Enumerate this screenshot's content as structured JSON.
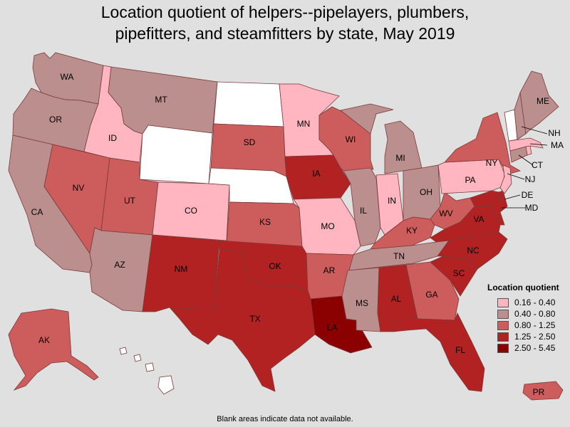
{
  "title": {
    "line1": "Location quotient of helpers--pipelayers, plumbers,",
    "line2": "pipefitters, and steamfitters by state, May 2019"
  },
  "legend": {
    "title": "Location quotient",
    "items": [
      {
        "label": "0.16 - 0.40",
        "color": "#ffb6c1"
      },
      {
        "label": "0.40 - 0.80",
        "color": "#bc8f8f"
      },
      {
        "label": "0.80 - 1.25",
        "color": "#cd5c5c"
      },
      {
        "label": "1.25 - 2.50",
        "color": "#b22222"
      },
      {
        "label": "2.50 - 5.45",
        "color": "#8b0000"
      }
    ]
  },
  "no_data_color": "#ffffff",
  "footnote": "Blank areas indicate data not available.",
  "states": {
    "WA": {
      "label": "WA",
      "class": 1
    },
    "OR": {
      "label": "OR",
      "class": 1
    },
    "CA": {
      "label": "CA",
      "class": 1
    },
    "ID": {
      "label": "ID",
      "class": 0
    },
    "NV": {
      "label": "NV",
      "class": 2
    },
    "MT": {
      "label": "MT",
      "class": 1
    },
    "WY": {
      "label": "",
      "class": -1
    },
    "UT": {
      "label": "UT",
      "class": 2
    },
    "AZ": {
      "label": "AZ",
      "class": 1
    },
    "CO": {
      "label": "CO",
      "class": 0
    },
    "NM": {
      "label": "NM",
      "class": 3
    },
    "ND": {
      "label": "",
      "class": -1
    },
    "SD": {
      "label": "SD",
      "class": 2
    },
    "NE": {
      "label": "",
      "class": -1
    },
    "KS": {
      "label": "KS",
      "class": 2
    },
    "OK": {
      "label": "OK",
      "class": 3
    },
    "TX": {
      "label": "TX",
      "class": 3
    },
    "MN": {
      "label": "MN",
      "class": 0
    },
    "IA": {
      "label": "IA",
      "class": 3
    },
    "MO": {
      "label": "MO",
      "class": 0
    },
    "AR": {
      "label": "AR",
      "class": 2
    },
    "LA": {
      "label": "LA",
      "class": 4
    },
    "WI": {
      "label": "WI",
      "class": 2
    },
    "IL": {
      "label": "IL",
      "class": 1
    },
    "MI": {
      "label": "MI",
      "class": 1
    },
    "IN": {
      "label": "IN",
      "class": 0
    },
    "OH": {
      "label": "OH",
      "class": 1
    },
    "KY": {
      "label": "KY",
      "class": 2
    },
    "TN": {
      "label": "TN",
      "class": 1
    },
    "MS": {
      "label": "MS",
      "class": 1
    },
    "AL": {
      "label": "AL",
      "class": 3
    },
    "GA": {
      "label": "GA",
      "class": 2
    },
    "FL": {
      "label": "FL",
      "class": 3
    },
    "SC": {
      "label": "SC",
      "class": 3
    },
    "NC": {
      "label": "NC",
      "class": 3
    },
    "VA": {
      "label": "VA",
      "class": 3
    },
    "WV": {
      "label": "WV",
      "class": 2
    },
    "PA": {
      "label": "PA",
      "class": 0
    },
    "NY": {
      "label": "NY",
      "class": 2
    },
    "VT": {
      "label": "",
      "class": -1
    },
    "NH": {
      "label": "NH",
      "class": 1
    },
    "ME": {
      "label": "ME",
      "class": 1
    },
    "MA": {
      "label": "MA",
      "class": 0
    },
    "RI": {
      "label": "",
      "class": 0
    },
    "CT": {
      "label": "CT",
      "class": 1
    },
    "NJ": {
      "label": "NJ",
      "class": 0
    },
    "DE": {
      "label": "DE",
      "class": 3
    },
    "MD": {
      "label": "MD",
      "class": 3
    },
    "AK": {
      "label": "AK",
      "class": 2
    },
    "HI": {
      "label": "",
      "class": -1
    },
    "PR": {
      "label": "PR",
      "class": 2
    }
  }
}
